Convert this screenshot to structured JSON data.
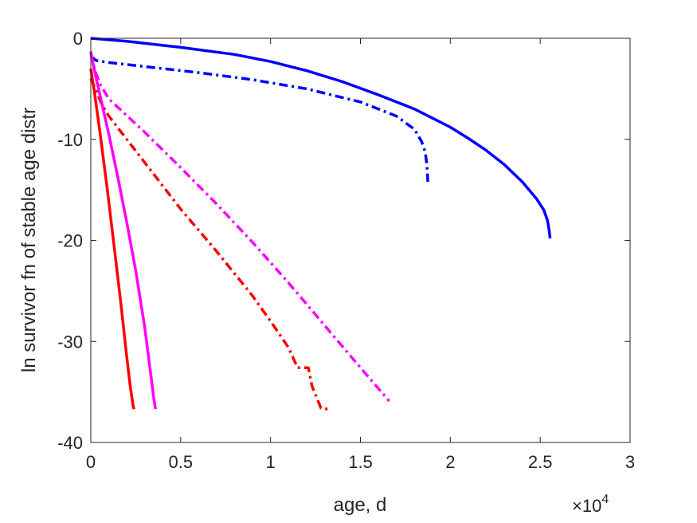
{
  "chart_data": {
    "type": "line",
    "title": "",
    "xlabel": "age, d",
    "ylabel": "ln survivor fn of stable age distr",
    "x_exponent_label": "×10",
    "x_exponent": "4",
    "xlim": [
      0,
      30000
    ],
    "ylim": [
      -40,
      0
    ],
    "xticks": [
      0,
      5000,
      10000,
      15000,
      20000,
      25000,
      30000
    ],
    "xtick_labels": [
      "0",
      "0.5",
      "1",
      "1.5",
      "2",
      "2.5",
      "3"
    ],
    "yticks": [
      -40,
      -30,
      -20,
      -10,
      0
    ],
    "ytick_labels": [
      "-40",
      "-30",
      "-20",
      "-10",
      "0"
    ],
    "grid": false,
    "series": [
      {
        "color": "#0000ff",
        "style": "solid",
        "x": [
          0,
          2000,
          5000,
          8000,
          10000,
          12000,
          14000,
          16000,
          18000,
          20000,
          21000,
          22000,
          23000,
          24000,
          24800,
          25200,
          25400,
          25500,
          25550
        ],
        "y": [
          0,
          -0.3,
          -0.9,
          -1.6,
          -2.3,
          -3.2,
          -4.3,
          -5.6,
          -7.0,
          -8.8,
          -9.9,
          -11.1,
          -12.5,
          -14.2,
          -15.9,
          -17.0,
          -18.0,
          -19.0,
          -19.8
        ]
      },
      {
        "color": "#0000ff",
        "style": "dashdot",
        "x": [
          0,
          300,
          1000,
          3000,
          6000,
          9000,
          12000,
          15000,
          17000,
          18000,
          18400,
          18600,
          18700,
          18750
        ],
        "y": [
          -1.8,
          -2.2,
          -2.4,
          -2.8,
          -3.4,
          -4.1,
          -5.0,
          -6.3,
          -7.7,
          -9.0,
          -10.2,
          -11.2,
          -12.6,
          -14.2
        ]
      },
      {
        "color": "#ff00ff",
        "style": "dashdot",
        "x": [
          0,
          200,
          500,
          1000,
          3000,
          5000,
          7000,
          9000,
          11000,
          13000,
          15000,
          16600
        ],
        "y": [
          -1.5,
          -3.0,
          -4.5,
          -6.0,
          -9.3,
          -12.8,
          -16.4,
          -20.2,
          -24.2,
          -28.4,
          -32.6,
          -35.9
        ]
      },
      {
        "color": "#ff0000",
        "style": "dashdot",
        "x": [
          0,
          300,
          600,
          1000,
          3000,
          5000,
          7000,
          9000,
          10000,
          11000,
          11500,
          12100,
          12300,
          12800,
          13200
        ],
        "y": [
          -4.0,
          -5.2,
          -6.5,
          -7.7,
          -12.3,
          -16.9,
          -21.1,
          -25.5,
          -28.0,
          -30.6,
          -32.6,
          -32.6,
          -34.4,
          -36.6,
          -36.7
        ]
      },
      {
        "color": "#ff00ff",
        "style": "solid",
        "x": [
          0,
          100,
          300,
          600,
          1000,
          1500,
          2000,
          2500,
          3000,
          3300,
          3500,
          3600
        ],
        "y": [
          -1.3,
          -2.3,
          -4.0,
          -6.3,
          -9.5,
          -13.7,
          -18.2,
          -23.0,
          -28.6,
          -32.8,
          -35.6,
          -36.7
        ]
      },
      {
        "color": "#ff0000",
        "style": "solid",
        "x": [
          0,
          200,
          500,
          900,
          1300,
          1700,
          2000,
          2200,
          2350,
          2400
        ],
        "y": [
          -3.0,
          -5.3,
          -9.2,
          -14.7,
          -20.6,
          -26.7,
          -31.5,
          -34.5,
          -36.3,
          -36.7
        ]
      }
    ]
  }
}
